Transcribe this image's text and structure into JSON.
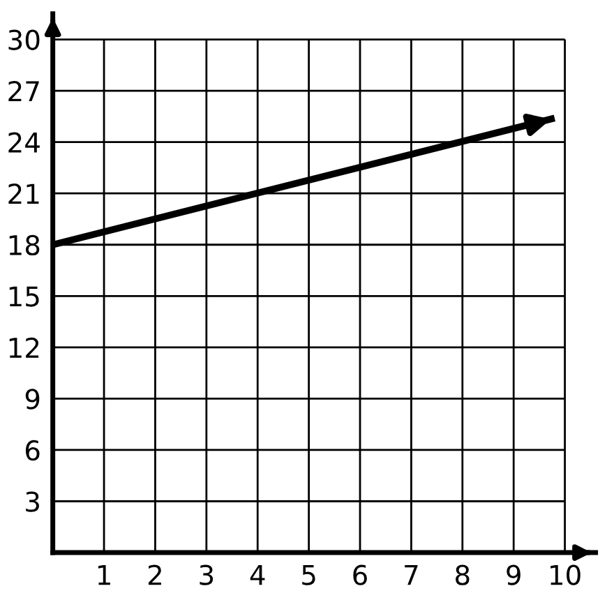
{
  "chart_data": {
    "type": "line",
    "x": [
      0,
      9.8
    ],
    "series": [
      {
        "color": "#000000",
        "values": [
          18,
          25.4
        ]
      }
    ],
    "xlim": [
      0,
      10.6
    ],
    "ylim": [
      0,
      31.5
    ],
    "xticks": [
      1,
      2,
      3,
      4,
      5,
      6,
      7,
      8,
      9,
      10
    ],
    "yticks": [
      3,
      6,
      9,
      12,
      15,
      18,
      21,
      24,
      27,
      30
    ],
    "grid": true,
    "marker": "none",
    "line_style": "solid"
  }
}
